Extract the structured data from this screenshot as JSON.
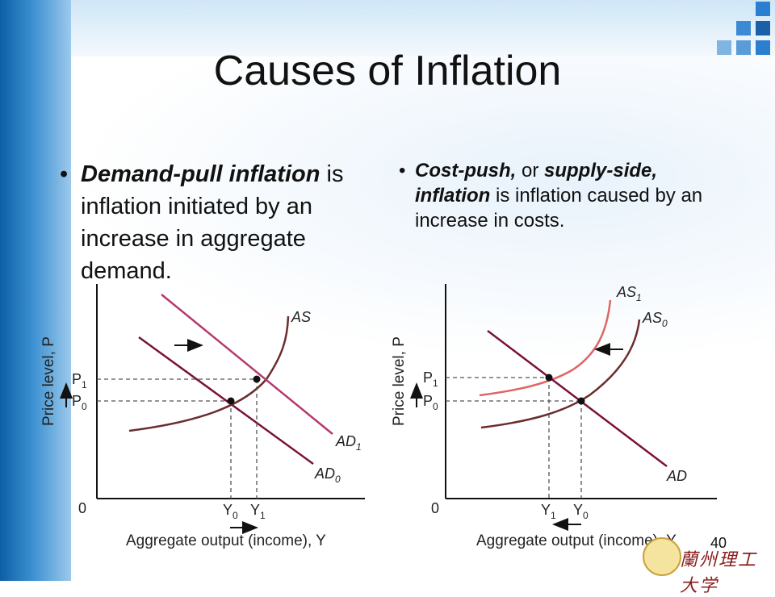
{
  "slide": {
    "title": "Causes of Inflation",
    "page_number": "40",
    "logo_text": "蘭州理工大学"
  },
  "bullets": {
    "left": {
      "bold_1": "Demand-pull inflation",
      "rest_1": " is inflation initiated by an increase in aggregate demand."
    },
    "right": {
      "bold_1": "Cost-push,",
      "rest_1": " or ",
      "bold_2": "supply-side, inflation",
      "rest_2": " is inflation caused by an increase in costs."
    }
  },
  "diagrams": {
    "left": {
      "y_axis_label": "Price level, P",
      "x_axis_label": "Aggregate output (income), Y",
      "origin": "0",
      "p1": "P",
      "p1_sub": "1",
      "p0": "P",
      "p0_sub": "0",
      "y0": "Y",
      "y0_sub": "0",
      "y1": "Y",
      "y1_sub": "1",
      "as": "AS",
      "ad1": "AD",
      "ad1_sub": "1",
      "ad0": "AD",
      "ad0_sub": "0",
      "colors": {
        "ad1": "#b5386f",
        "ad0": "#7a1138",
        "as": "#6b2d2d"
      }
    },
    "right": {
      "y_axis_label": "Price level, P",
      "x_axis_label": "Aggregate output (income), Y",
      "origin": "0",
      "p1": "P",
      "p1_sub": "1",
      "p0": "P",
      "p0_sub": "0",
      "y1": "Y",
      "y1_sub": "1",
      "y0": "Y",
      "y0_sub": "0",
      "as1": "AS",
      "as1_sub": "1",
      "as0": "AS",
      "as0_sub": "0",
      "ad": "AD",
      "colors": {
        "as1": "#e06666",
        "as0": "#6b2d2d",
        "ad": "#7a1138"
      }
    }
  }
}
